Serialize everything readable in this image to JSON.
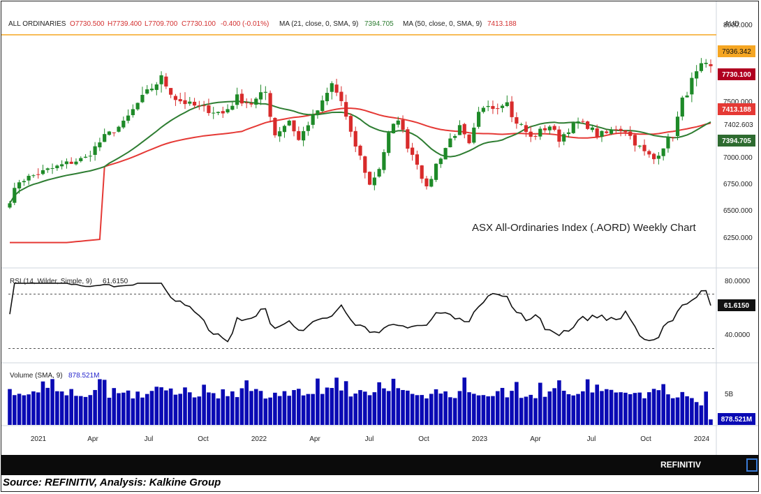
{
  "header": {
    "symbol": "ALL ORDINARIES",
    "ohlc": [
      "O7730.500",
      "H7739.400",
      "L7709.700",
      "C7730.100",
      "-0.400",
      "(-0.01%)"
    ],
    "ma21_label": "MA (21, close, 0, SMA, 9)",
    "ma21_value": "7394.705",
    "ma50_label": "MA (50, close, 0, SMA, 9)",
    "ma50_value": "7413.188",
    "currency": "AUD"
  },
  "watermark": "ASX All-Ordinaries Index (.AORD) Weekly Chart",
  "brand": "REFINITIV",
  "source": "Source: REFINITIV, Analysis: Kalkine Group",
  "colors": {
    "up": "#1e8a28",
    "down": "#d82b2b",
    "ma21": "#2e7d32",
    "ma50": "#e53935",
    "resistance": "#f5a623",
    "rsi": "#111111",
    "volume": "#0a0ab4"
  },
  "chart_data": [
    {
      "type": "candlestick",
      "panel": "price",
      "x_ticks": [
        "2021",
        "Apr",
        "Jul",
        "Oct",
        "2022",
        "Apr",
        "Jul",
        "Oct",
        "2023",
        "Apr",
        "Jul",
        "Oct",
        "2024"
      ],
      "y_ticks": [
        "8000.000",
        "7500.000",
        "7000.000",
        "6750.000",
        "6500.000",
        "6250.000"
      ],
      "ylim": [
        6150,
        8020
      ],
      "resistance_line": 7936.342,
      "close_key_points": [
        [
          0,
          6600
        ],
        [
          2,
          6780
        ],
        [
          8,
          6880
        ],
        [
          12,
          6940
        ],
        [
          16,
          6990
        ],
        [
          20,
          7180
        ],
        [
          24,
          7300
        ],
        [
          27,
          7480
        ],
        [
          30,
          7590
        ],
        [
          32,
          7650
        ],
        [
          35,
          7520
        ],
        [
          38,
          7470
        ],
        [
          42,
          7420
        ],
        [
          45,
          7390
        ],
        [
          48,
          7520
        ],
        [
          51,
          7480
        ],
        [
          54,
          7560
        ],
        [
          56,
          7200
        ],
        [
          59,
          7330
        ],
        [
          61,
          7150
        ],
        [
          63,
          7300
        ],
        [
          65,
          7420
        ],
        [
          68,
          7610
        ],
        [
          70,
          7500
        ],
        [
          72,
          7200
        ],
        [
          74,
          7000
        ],
        [
          76,
          6740
        ],
        [
          78,
          6900
        ],
        [
          80,
          7200
        ],
        [
          82,
          7350
        ],
        [
          84,
          7100
        ],
        [
          86,
          6950
        ],
        [
          88,
          6700
        ],
        [
          90,
          6930
        ],
        [
          93,
          7160
        ],
        [
          95,
          7260
        ],
        [
          97,
          7100
        ],
        [
          99,
          7380
        ],
        [
          101,
          7470
        ],
        [
          103,
          7450
        ],
        [
          105,
          7520
        ],
        [
          106,
          7350
        ],
        [
          108,
          7280
        ],
        [
          110,
          7170
        ],
        [
          112,
          7230
        ],
        [
          114,
          7280
        ],
        [
          116,
          7160
        ],
        [
          118,
          7250
        ],
        [
          120,
          7310
        ],
        [
          122,
          7280
        ],
        [
          124,
          7200
        ],
        [
          126,
          7210
        ],
        [
          128,
          7260
        ],
        [
          130,
          7240
        ],
        [
          132,
          7130
        ],
        [
          134,
          7040
        ],
        [
          136,
          6980
        ],
        [
          138,
          7100
        ],
        [
          140,
          7200
        ],
        [
          142,
          7500
        ],
        [
          144,
          7630
        ],
        [
          146,
          7720
        ],
        [
          148,
          7730
        ]
      ],
      "series": [
        {
          "name": "MA (21, close, 0, SMA, 9)",
          "last": 7394.705
        },
        {
          "name": "MA (50, close, 0, SMA, 9)",
          "last": 7413.188
        }
      ],
      "price_labels": [
        "7936.342",
        "7730.100",
        "7413.188",
        "7402.603",
        "7394.705"
      ]
    },
    {
      "type": "line",
      "panel": "rsi",
      "label": "RSI (14, Wilder, Simple, 9)",
      "value": "61.6150",
      "y_ticks": [
        "80.0000",
        "40.0000"
      ],
      "ylim": [
        20,
        90
      ],
      "guide_levels": [
        70,
        30
      ]
    },
    {
      "type": "bar",
      "panel": "volume",
      "label": "Volume (SMA, 9)",
      "value": "878.521M",
      "y_ticks": [
        "5B"
      ],
      "value_unit": "B"
    }
  ]
}
